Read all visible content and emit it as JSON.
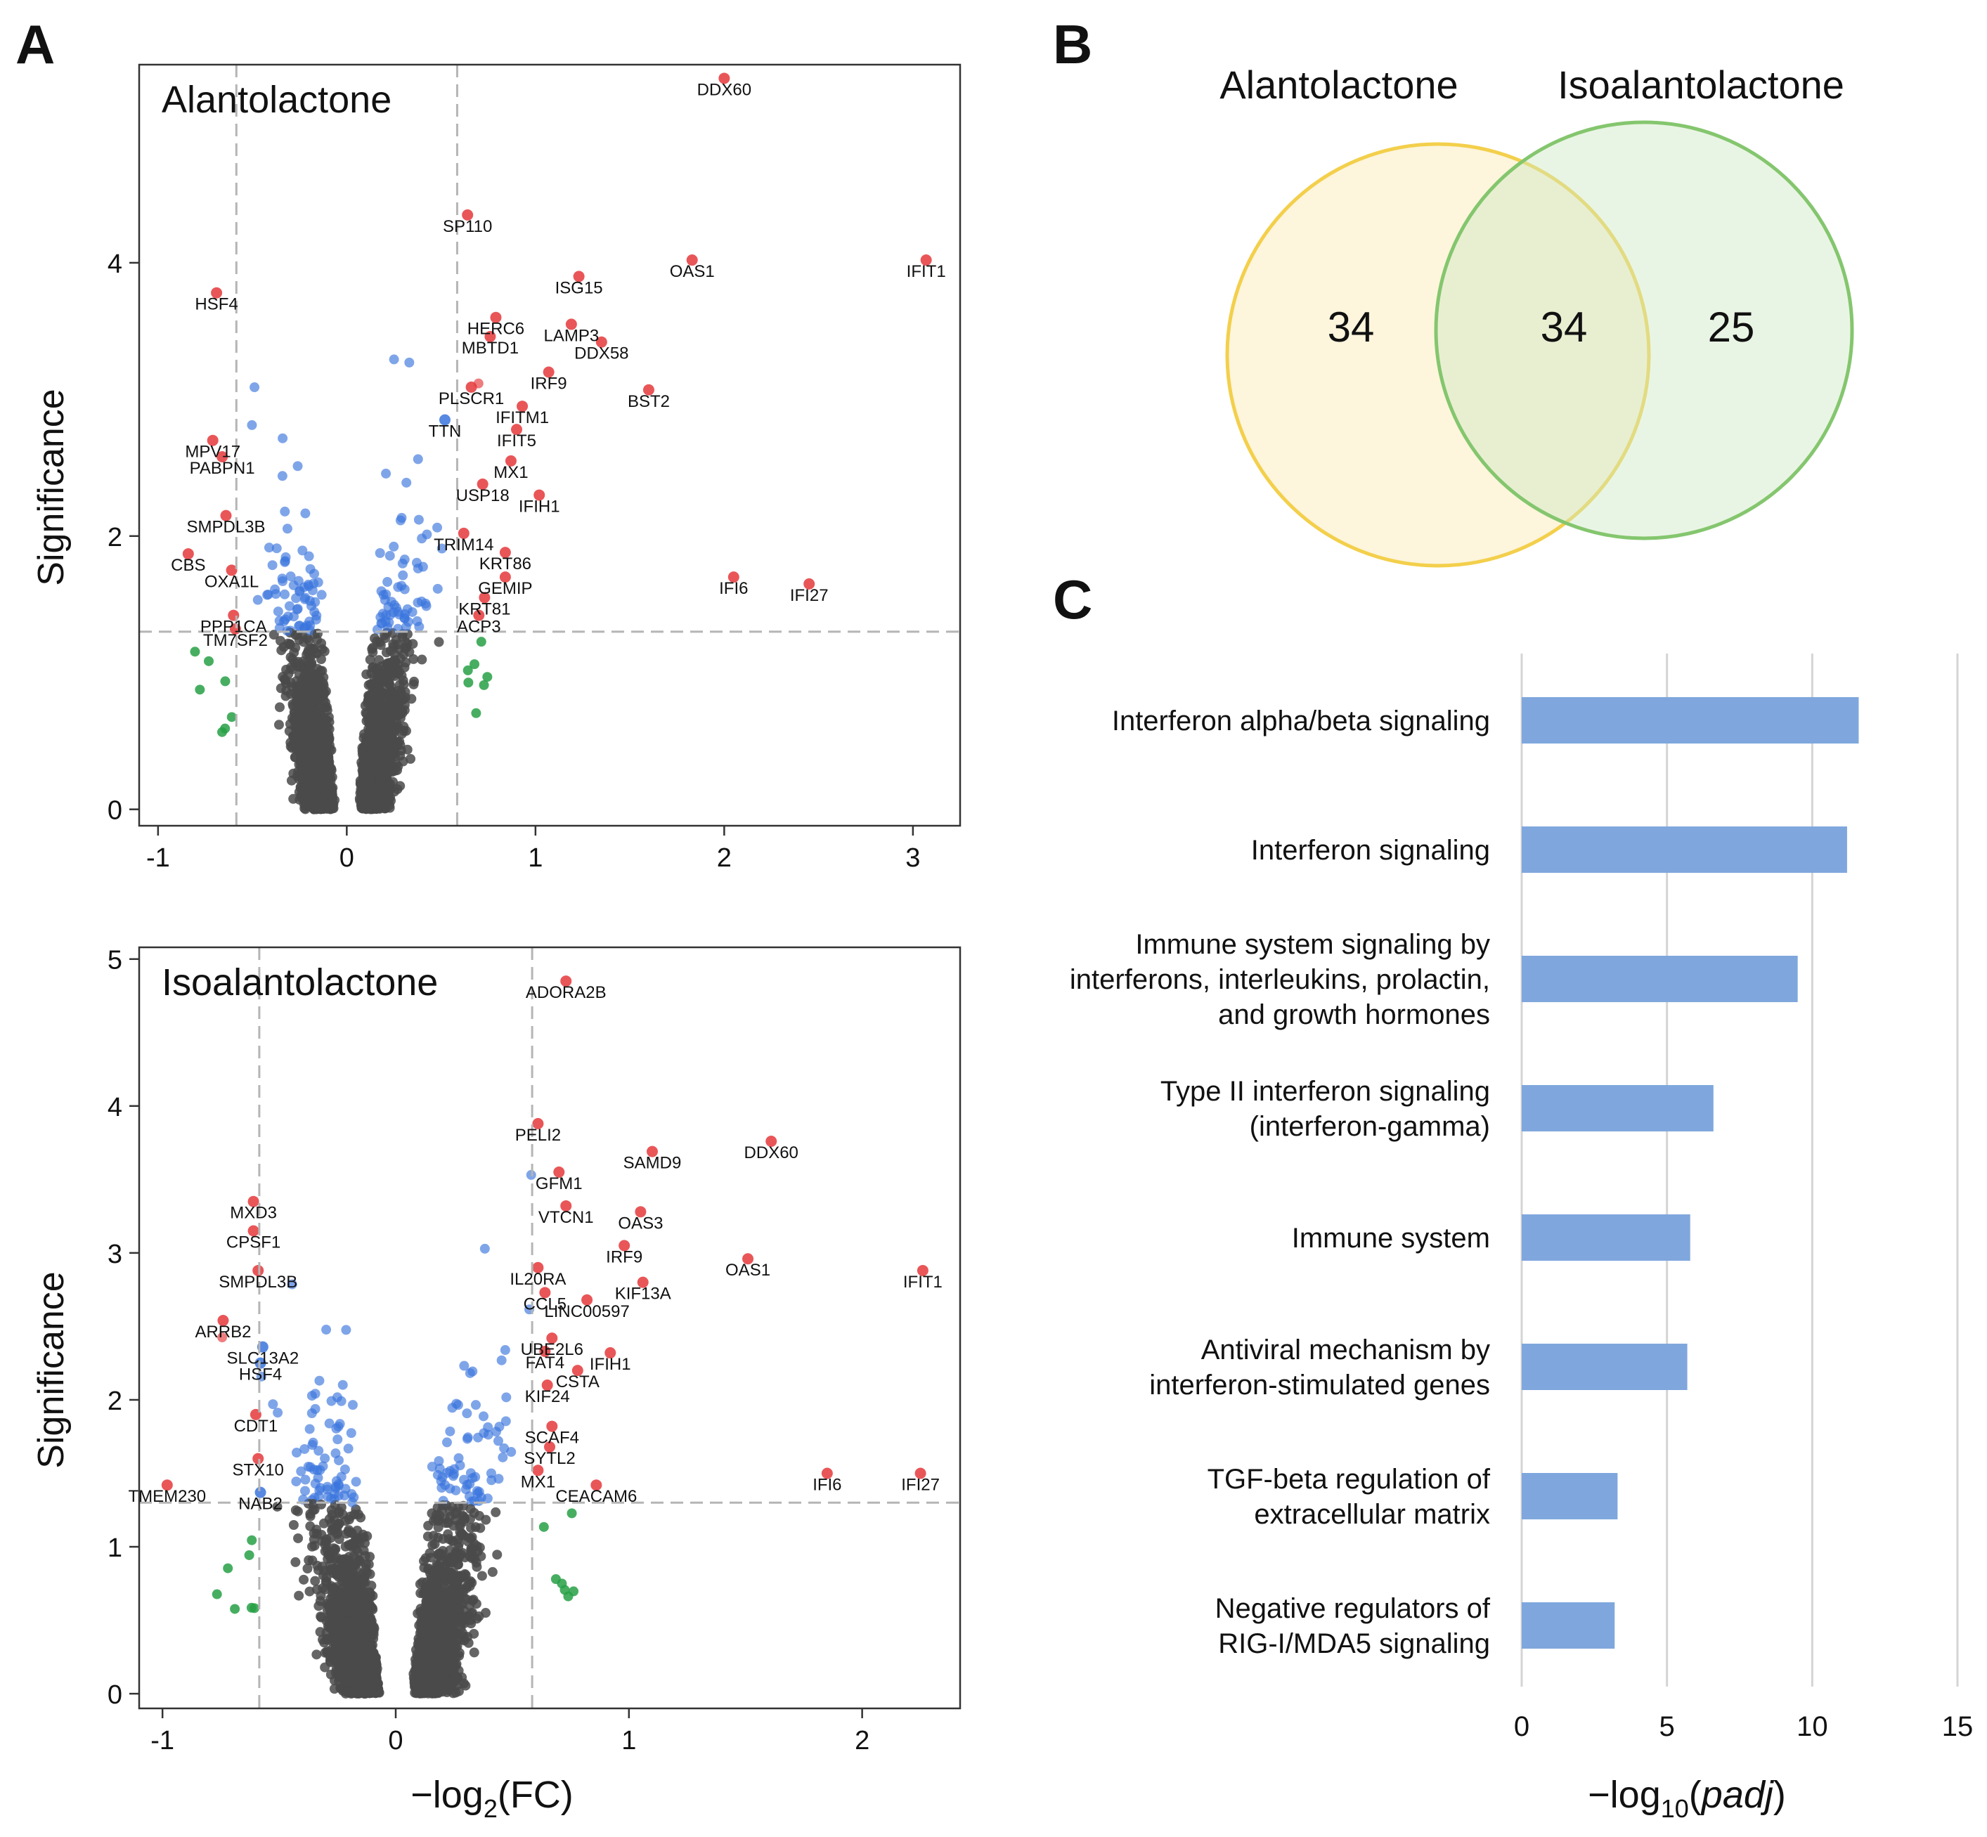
{
  "colors": {
    "blue": "#3a74dd",
    "red": "#e5383b",
    "green": "#27a045",
    "grey": "#4a4a4a",
    "bar": "#7fa7dd",
    "venn_yellow": "#f3cf4b",
    "venn_green": "#84c66e"
  },
  "panel_labels": {
    "a": "A",
    "b": "B",
    "c": "C"
  },
  "chart_data": [
    {
      "type": "scatter",
      "id": "volcano_alantolactone",
      "title": "Alantolactone",
      "xlabel_prefix": "−log",
      "xlabel_sub": "2",
      "xlabel_suffix": "(FC)",
      "ylabel": "Significance",
      "xlim": [
        -1.1,
        3.25
      ],
      "ylim": [
        -0.12,
        5.45
      ],
      "xticks": [
        -1,
        0,
        1,
        2,
        3
      ],
      "yticks": [
        0,
        2,
        4
      ],
      "fc_threshold": 0.585,
      "sig_threshold": 1.3,
      "labeled_genes": [
        {
          "g": "DDX60",
          "x": 2.0,
          "y": 5.35
        },
        {
          "g": "SP110",
          "x": 0.64,
          "y": 4.35
        },
        {
          "g": "OAS1",
          "x": 1.83,
          "y": 4.02
        },
        {
          "g": "IFIT1",
          "x": 3.07,
          "y": 4.02
        },
        {
          "g": "ISG15",
          "x": 1.23,
          "y": 3.9
        },
        {
          "g": "HSF4",
          "x": -0.69,
          "y": 3.78
        },
        {
          "g": "HERC6",
          "x": 0.79,
          "y": 3.6
        },
        {
          "g": "LAMP3",
          "x": 1.19,
          "y": 3.55
        },
        {
          "g": "MBTD1",
          "x": 0.76,
          "y": 3.46
        },
        {
          "g": "DDX58",
          "x": 1.35,
          "y": 3.42
        },
        {
          "g": "IRF9",
          "x": 1.07,
          "y": 3.2
        },
        {
          "g": "BST2",
          "x": 1.6,
          "y": 3.07
        },
        {
          "g": "PLSCR1",
          "x": 0.66,
          "y": 3.09
        },
        {
          "g": "IFITM1",
          "x": 0.93,
          "y": 2.95
        },
        {
          "g": "TTN",
          "x": 0.52,
          "y": 2.85
        },
        {
          "g": "IFIT5",
          "x": 0.9,
          "y": 2.78
        },
        {
          "g": "MPV17",
          "x": -0.71,
          "y": 2.7
        },
        {
          "g": "PABPN1",
          "x": -0.66,
          "y": 2.58
        },
        {
          "g": "MX1",
          "x": 0.87,
          "y": 2.55
        },
        {
          "g": "USP18",
          "x": 0.72,
          "y": 2.38
        },
        {
          "g": "IFIH1",
          "x": 1.02,
          "y": 2.3
        },
        {
          "g": "SMPDL3B",
          "x": -0.64,
          "y": 2.15
        },
        {
          "g": "TRIM14",
          "x": 0.62,
          "y": 2.02
        },
        {
          "g": "KRT86",
          "x": 0.84,
          "y": 1.88
        },
        {
          "g": "CBS",
          "x": -0.84,
          "y": 1.87
        },
        {
          "g": "OXA1L",
          "x": -0.61,
          "y": 1.75
        },
        {
          "g": "IFI6",
          "x": 2.05,
          "y": 1.7
        },
        {
          "g": "IFI27",
          "x": 2.45,
          "y": 1.65
        },
        {
          "g": "GEMIP",
          "x": 0.84,
          "y": 1.7
        },
        {
          "g": "KRT81",
          "x": 0.73,
          "y": 1.55
        },
        {
          "g": "ACP3",
          "x": 0.7,
          "y": 1.42
        },
        {
          "g": "PPP1CA",
          "x": -0.6,
          "y": 1.42
        },
        {
          "g": "TM7SF2",
          "x": -0.59,
          "y": 1.32
        }
      ]
    },
    {
      "type": "scatter",
      "id": "volcano_isoalantolactone",
      "title": "Isoalantolactone",
      "xlabel_prefix": "−log",
      "xlabel_sub": "2",
      "xlabel_suffix": "(FC)",
      "ylabel": "Significance",
      "xlim": [
        -1.1,
        2.42
      ],
      "ylim": [
        -0.1,
        5.08
      ],
      "xticks": [
        -1,
        0,
        1,
        2
      ],
      "yticks": [
        0,
        1,
        2,
        3,
        4,
        5
      ],
      "fc_threshold": 0.585,
      "sig_threshold": 1.3,
      "labeled_genes": [
        {
          "g": "ADORA2B",
          "x": 0.73,
          "y": 4.85
        },
        {
          "g": "PELI2",
          "x": 0.61,
          "y": 3.88
        },
        {
          "g": "DDX60",
          "x": 1.61,
          "y": 3.76
        },
        {
          "g": "SAMD9",
          "x": 1.1,
          "y": 3.69
        },
        {
          "g": "GFM1",
          "x": 0.7,
          "y": 3.55
        },
        {
          "g": "MXD3",
          "x": -0.61,
          "y": 3.35
        },
        {
          "g": "VTCN1",
          "x": 0.73,
          "y": 3.32
        },
        {
          "g": "OAS3",
          "x": 1.05,
          "y": 3.28
        },
        {
          "g": "CPSF1",
          "x": -0.61,
          "y": 3.15
        },
        {
          "g": "IRF9",
          "x": 0.98,
          "y": 3.05
        },
        {
          "g": "OAS1",
          "x": 1.51,
          "y": 2.96
        },
        {
          "g": "IFIT1",
          "x": 2.26,
          "y": 2.88
        },
        {
          "g": "SMPDL3B",
          "x": -0.59,
          "y": 2.88
        },
        {
          "g": "IL20RA",
          "x": 0.61,
          "y": 2.9
        },
        {
          "g": "KIF13A",
          "x": 1.06,
          "y": 2.8
        },
        {
          "g": "CCL5",
          "x": 0.64,
          "y": 2.73
        },
        {
          "g": "LINC00597",
          "x": 0.82,
          "y": 2.68
        },
        {
          "g": "ARRB2",
          "x": -0.74,
          "y": 2.54
        },
        {
          "g": "UBE2L6",
          "x": 0.67,
          "y": 2.42
        },
        {
          "g": "FAT4",
          "x": 0.64,
          "y": 2.33
        },
        {
          "g": "SLC13A2",
          "x": -0.57,
          "y": 2.36
        },
        {
          "g": "IFIH1",
          "x": 0.92,
          "y": 2.32
        },
        {
          "g": "HSF4",
          "x": -0.58,
          "y": 2.25
        },
        {
          "g": "CSTA",
          "x": 0.78,
          "y": 2.2
        },
        {
          "g": "KIF24",
          "x": 0.65,
          "y": 2.1
        },
        {
          "g": "CDT1",
          "x": -0.6,
          "y": 1.9
        },
        {
          "g": "SCAF4",
          "x": 0.67,
          "y": 1.82
        },
        {
          "g": "SYTL2",
          "x": 0.66,
          "y": 1.68
        },
        {
          "g": "STX10",
          "x": -0.59,
          "y": 1.6
        },
        {
          "g": "MX1",
          "x": 0.61,
          "y": 1.52
        },
        {
          "g": "IFI6",
          "x": 1.85,
          "y": 1.5
        },
        {
          "g": "IFI27",
          "x": 2.25,
          "y": 1.5
        },
        {
          "g": "TMEM230",
          "x": -0.98,
          "y": 1.42
        },
        {
          "g": "CEACAM6",
          "x": 0.86,
          "y": 1.42
        },
        {
          "g": "NAB2",
          "x": -0.58,
          "y": 1.37
        }
      ]
    },
    {
      "type": "bar",
      "id": "reactome_enrichment",
      "orientation": "horizontal",
      "categories": [
        [
          "Interferon alpha/beta signaling"
        ],
        [
          "Interferon signaling"
        ],
        [
          "Immune system signaling by",
          "interferons, interleukins, prolactin,",
          "and growth hormones"
        ],
        [
          "Type II interferon signaling",
          "(interferon-gamma)"
        ],
        [
          "Immune system"
        ],
        [
          "Antiviral mechanism by",
          "interferon-stimulated genes"
        ],
        [
          "TGF-beta regulation of",
          "extracellular matrix"
        ],
        [
          "Negative regulators of",
          "RIG-I/MDA5 signaling"
        ]
      ],
      "values": [
        11.6,
        11.2,
        9.5,
        6.6,
        5.8,
        5.7,
        3.3,
        3.2
      ],
      "xlim": [
        0,
        15
      ],
      "xticks": [
        0,
        5,
        10,
        15
      ],
      "xlabel_prefix": "−log",
      "xlabel_sub": "10",
      "xlabel_paren_open": "(",
      "xlabel_italic": "padj",
      "xlabel_paren_close": ")",
      "grid": true
    },
    {
      "type": "venn",
      "id": "deg_overlap",
      "sets": [
        "Alantolactone",
        "Isoalantolactone"
      ],
      "only_a": 34,
      "overlap": 34,
      "only_b": 25
    }
  ]
}
